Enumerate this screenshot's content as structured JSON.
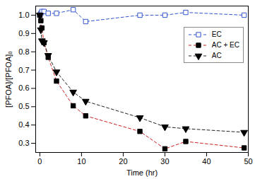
{
  "chart_data": {
    "type": "line",
    "x_label": "Time (hr)",
    "y_label": "[PFOA]/[PFOA]₀",
    "x": [
      0,
      0.25,
      0.5,
      1,
      2,
      4,
      8,
      11,
      24,
      30,
      35,
      49
    ],
    "series": [
      {
        "name": "EC",
        "color": "#3355cc",
        "marker": "open_square",
        "line_style": "dashed",
        "values": [
          1.0,
          1.01,
          1.02,
          1.02,
          1.01,
          1.01,
          1.03,
          0.965,
          1.0,
          1.0,
          1.015,
          1.0
        ]
      },
      {
        "name": "AC + EC",
        "color": "#cc2222",
        "marker": "square",
        "line_style": "dashed",
        "values": [
          1.0,
          0.97,
          0.93,
          0.85,
          0.77,
          0.64,
          0.505,
          0.45,
          0.365,
          0.27,
          0.31,
          0.275
        ]
      },
      {
        "name": "AC",
        "color": "#222222",
        "marker": "triangle_down",
        "line_style": "dashed",
        "values": [
          1.0,
          0.92,
          0.86,
          0.85,
          0.78,
          0.69,
          0.58,
          0.53,
          0.44,
          0.39,
          0.38,
          0.36
        ]
      }
    ],
    "xlim": [
      -1,
      50
    ],
    "xticks": [
      0,
      10,
      20,
      30,
      40,
      50
    ],
    "ylim": [
      0.25,
      1.05
    ],
    "yticks": [
      0.3,
      0.4,
      0.5,
      0.6,
      0.7,
      0.8,
      0.9,
      {
        "value": 1,
        "label": "1.0"
      }
    ],
    "legend": "upper right",
    "grid": false
  }
}
